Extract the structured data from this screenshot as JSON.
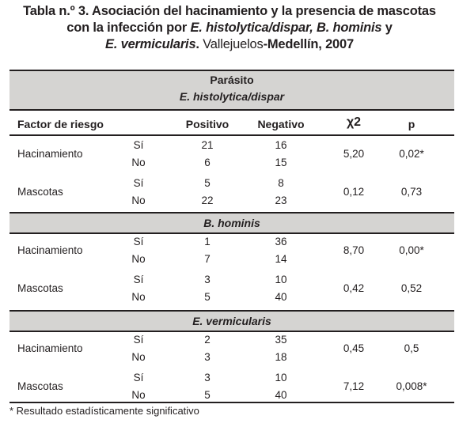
{
  "caption": {
    "line1_bold": "Tabla n.º 3. Asociación del hacinamiento y la presencia de mascotas",
    "line2_a": "con la infección por ",
    "line2_b_italic": "E. histolytica/dispar, B. hominis",
    "line2_c": " y",
    "line3_a_italic": "E. vermicularis",
    "line3_b": ". ",
    "line3_c_normal": "Vallejuelos",
    "line3_d": "-Medellín, 2007"
  },
  "table": {
    "group_label": "Parásito",
    "columns": [
      "Factor de riesgo",
      "Positivo",
      "Negativo",
      "χ2",
      "p"
    ],
    "sections": [
      {
        "name": "E. histolytica/dispar",
        "rows": [
          {
            "factor": "Hacinamiento",
            "levels": [
              "Sí",
              "No"
            ],
            "positivo": [
              "21",
              "6"
            ],
            "negativo": [
              "16",
              "15"
            ],
            "chi2": "5,20",
            "p": "0,02*"
          },
          {
            "factor": "Mascotas",
            "levels": [
              "Sí",
              "No"
            ],
            "positivo": [
              "5",
              "22"
            ],
            "negativo": [
              "8",
              "23"
            ],
            "chi2": "0,12",
            "p": "0,73"
          }
        ]
      },
      {
        "name": "B. hominis",
        "rows": [
          {
            "factor": "Hacinamiento",
            "levels": [
              "Sí",
              "No"
            ],
            "positivo": [
              "1",
              "7"
            ],
            "negativo": [
              "36",
              "14"
            ],
            "chi2": "8,70",
            "p": "0,00*"
          },
          {
            "factor": "Mascotas",
            "levels": [
              "Sí",
              "No"
            ],
            "positivo": [
              "3",
              "5"
            ],
            "negativo": [
              "10",
              "40"
            ],
            "chi2": "0,42",
            "p": "0,52"
          }
        ]
      },
      {
        "name": "E. vermicularis",
        "rows": [
          {
            "factor": "Hacinamiento",
            "levels": [
              "Sí",
              "No"
            ],
            "positivo": [
              "2",
              "3"
            ],
            "negativo": [
              "35",
              "18"
            ],
            "chi2": "0,45",
            "p": "0,5"
          },
          {
            "factor": "Mascotas",
            "levels": [
              "Sí",
              "No"
            ],
            "positivo": [
              "3",
              "5"
            ],
            "negativo": [
              "10",
              "40"
            ],
            "chi2": "7,12",
            "p": "0,008*"
          }
        ]
      }
    ]
  },
  "footnote": "* Resultado estadísticamente significativo",
  "colors": {
    "band": "#d5d4d2",
    "rule": "#231f20",
    "text": "#231f20"
  }
}
